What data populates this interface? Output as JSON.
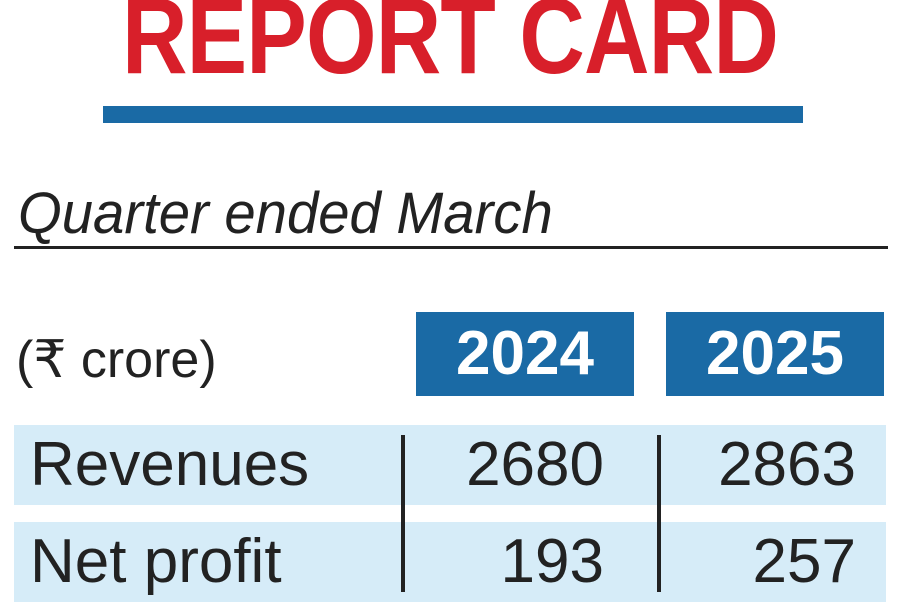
{
  "chart_data": {
    "type": "table",
    "title": "REPORT CARD",
    "subtitle": "Quarter ended March",
    "unit_label": "(₹ crore)",
    "columns": [
      "2024",
      "2025"
    ],
    "rows": [
      {
        "label": "Revenues",
        "values": [
          "2680",
          "2863"
        ]
      },
      {
        "label": "Net profit",
        "values": [
          "193",
          "257"
        ]
      }
    ]
  },
  "colors": {
    "title": "#d81f2a",
    "accent": "#1a6aa5",
    "row_fill": "#d6ecf8",
    "text": "#222222"
  }
}
